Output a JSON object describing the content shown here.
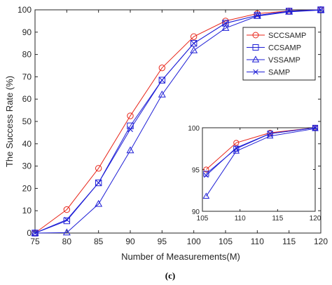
{
  "chart_data": {
    "type": "line",
    "xlabel": "Number of Measurements(M)",
    "ylabel": "The Success Rate (%)",
    "xlim": [
      75,
      120
    ],
    "ylim": [
      0,
      100
    ],
    "xticks": [
      75,
      80,
      85,
      90,
      95,
      100,
      105,
      110,
      115,
      120
    ],
    "yticks": [
      0,
      10,
      20,
      30,
      40,
      50,
      60,
      70,
      80,
      90,
      100
    ],
    "grid": false,
    "legend_position": "top-right",
    "caption": "(c)",
    "x": [
      75,
      80,
      85,
      90,
      95,
      100,
      105,
      110,
      115,
      120
    ],
    "series": [
      {
        "name": "SCCSAMP",
        "color": "#e8261a",
        "marker": "circle",
        "values": [
          0,
          10.5,
          29,
          52.5,
          74,
          88,
          95,
          98.3,
          99.5,
          100
        ]
      },
      {
        "name": "CCSAMP",
        "color": "#1f1fd6",
        "marker": "square",
        "values": [
          0,
          5.5,
          22.5,
          48,
          68.5,
          85,
          94,
          97.5,
          99.4,
          100
        ]
      },
      {
        "name": "VSSAMP",
        "color": "#1f1fd6",
        "marker": "triangle",
        "values": [
          0,
          0.2,
          13,
          37,
          62,
          81.8,
          91.8,
          97.2,
          99.1,
          99.9
        ]
      },
      {
        "name": "SAMP",
        "color": "#1f1fd6",
        "marker": "x",
        "values": [
          0,
          6,
          22.5,
          46.5,
          68.5,
          85,
          94,
          97.5,
          99.4,
          100
        ]
      }
    ],
    "inset": {
      "xlim": [
        105,
        120
      ],
      "ylim": [
        90,
        100
      ],
      "xticks": [
        105,
        110,
        115,
        120
      ],
      "yticks": [
        90,
        95,
        100
      ],
      "x": [
        105.5,
        109.5,
        114,
        120
      ],
      "series": [
        {
          "name": "SCCSAMP",
          "values": [
            95,
            98.2,
            99.4,
            100
          ]
        },
        {
          "name": "CCSAMP",
          "values": [
            94.5,
            97.5,
            99.3,
            100
          ]
        },
        {
          "name": "VSSAMP",
          "values": [
            91.8,
            97.2,
            99.0,
            99.9
          ]
        },
        {
          "name": "SAMP",
          "values": [
            94.3,
            97.6,
            99.3,
            100
          ]
        }
      ]
    }
  }
}
